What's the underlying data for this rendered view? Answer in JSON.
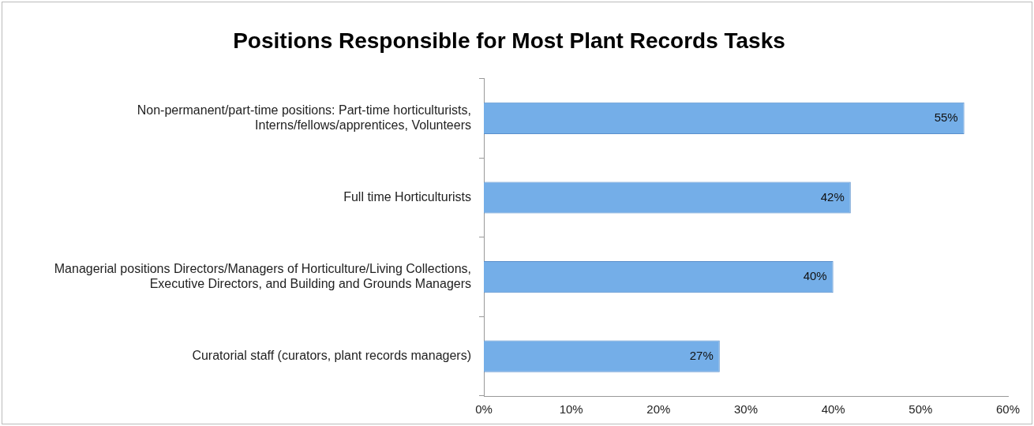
{
  "chart_data": {
    "type": "bar",
    "orientation": "horizontal",
    "title": "Positions Responsible for Most Plant Records Tasks",
    "categories": [
      "Non-permanent/part-time positions: Part-time horticulturists, Interns/fellows/apprentices, Volunteers",
      "Full time Horticulturists",
      "Managerial positions Directors/Managers of Horticulture/Living Collections, Executive Directors, and Building and Grounds Managers",
      "Curatorial staff (curators, plant records managers)"
    ],
    "values": [
      55,
      42,
      40,
      27
    ],
    "value_labels": [
      "55%",
      "42%",
      "40%",
      "27%"
    ],
    "color": "#74aee8",
    "xlim": [
      0,
      60
    ],
    "xticks": [
      {
        "value": 0,
        "label": "0%"
      },
      {
        "value": 10,
        "label": "10%"
      },
      {
        "value": 20,
        "label": "20%"
      },
      {
        "value": 30,
        "label": "30%"
      },
      {
        "value": 40,
        "label": "40%"
      },
      {
        "value": 50,
        "label": "50%"
      },
      {
        "value": 60,
        "label": "60%"
      }
    ]
  }
}
